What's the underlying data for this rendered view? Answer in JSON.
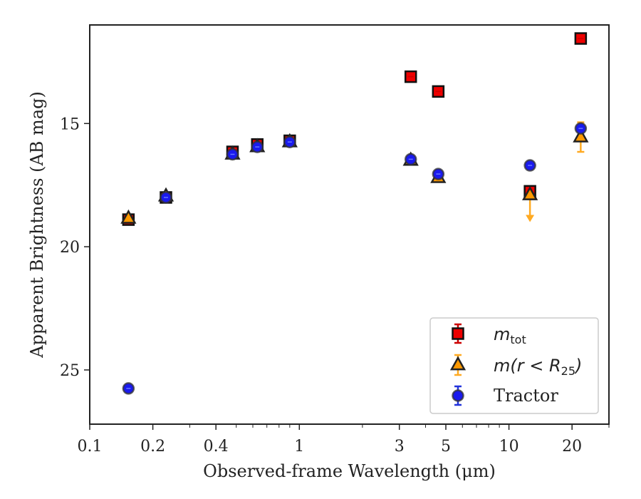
{
  "chart_data": {
    "type": "scatter",
    "title": "",
    "xlabel": "Observed-frame Wavelength (μm)",
    "ylabel": "Apparent Brightness (AB mag)",
    "xscale": "log",
    "xlim": [
      0.1,
      30
    ],
    "ylim": [
      27.2,
      11.0
    ],
    "y_inverted": true,
    "x_ticks": [
      0.1,
      0.2,
      0.4,
      1,
      3,
      5,
      10,
      20
    ],
    "x_tick_labels": [
      "0.1",
      "0.2",
      "0.4",
      "1",
      "3",
      "5",
      "10",
      "20"
    ],
    "y_ticks": [
      15,
      20,
      25
    ],
    "y_tick_labels": [
      "15",
      "20",
      "25"
    ],
    "grid": false,
    "legend_position": "lower-right",
    "series": [
      {
        "name": "m_tot",
        "marker": "square",
        "color": "#ee0000",
        "errorbar_color": "#cc0000",
        "points": [
          {
            "x": 0.153,
            "y": 18.9
          },
          {
            "x": 0.231,
            "y": 18.0
          },
          {
            "x": 0.48,
            "y": 16.15
          },
          {
            "x": 0.63,
            "y": 15.85
          },
          {
            "x": 0.9,
            "y": 15.7
          },
          {
            "x": 3.4,
            "y": 13.1
          },
          {
            "x": 4.6,
            "y": 13.7
          },
          {
            "x": 12.6,
            "y": 17.75
          },
          {
            "x": 22.0,
            "y": 11.55
          }
        ]
      },
      {
        "name": "m(r < R25)",
        "marker": "triangle",
        "color": "#ff9900",
        "errorbar_color": "#ffaa22",
        "points": [
          {
            "x": 0.153,
            "y": 18.85
          },
          {
            "x": 0.231,
            "y": 17.95
          },
          {
            "x": 0.48,
            "y": 16.25
          },
          {
            "x": 0.63,
            "y": 15.95
          },
          {
            "x": 0.9,
            "y": 15.75
          },
          {
            "x": 3.4,
            "y": 16.5
          },
          {
            "x": 4.6,
            "y": 17.2
          },
          {
            "x": 12.6,
            "y": 17.9,
            "upper_limit": true
          },
          {
            "x": 22.0,
            "y": 15.55,
            "err": 0.6
          }
        ]
      },
      {
        "name": "Tractor",
        "marker": "circle",
        "color": "#1a1aee",
        "errorbar_color": "#2233dd",
        "points": [
          {
            "x": 0.153,
            "y": 25.75
          },
          {
            "x": 0.231,
            "y": 18.0
          },
          {
            "x": 0.48,
            "y": 16.25
          },
          {
            "x": 0.63,
            "y": 15.95
          },
          {
            "x": 0.9,
            "y": 15.75
          },
          {
            "x": 3.4,
            "y": 16.45
          },
          {
            "x": 4.6,
            "y": 17.05
          },
          {
            "x": 12.6,
            "y": 16.7
          },
          {
            "x": 22.0,
            "y": 15.2
          }
        ]
      }
    ]
  }
}
